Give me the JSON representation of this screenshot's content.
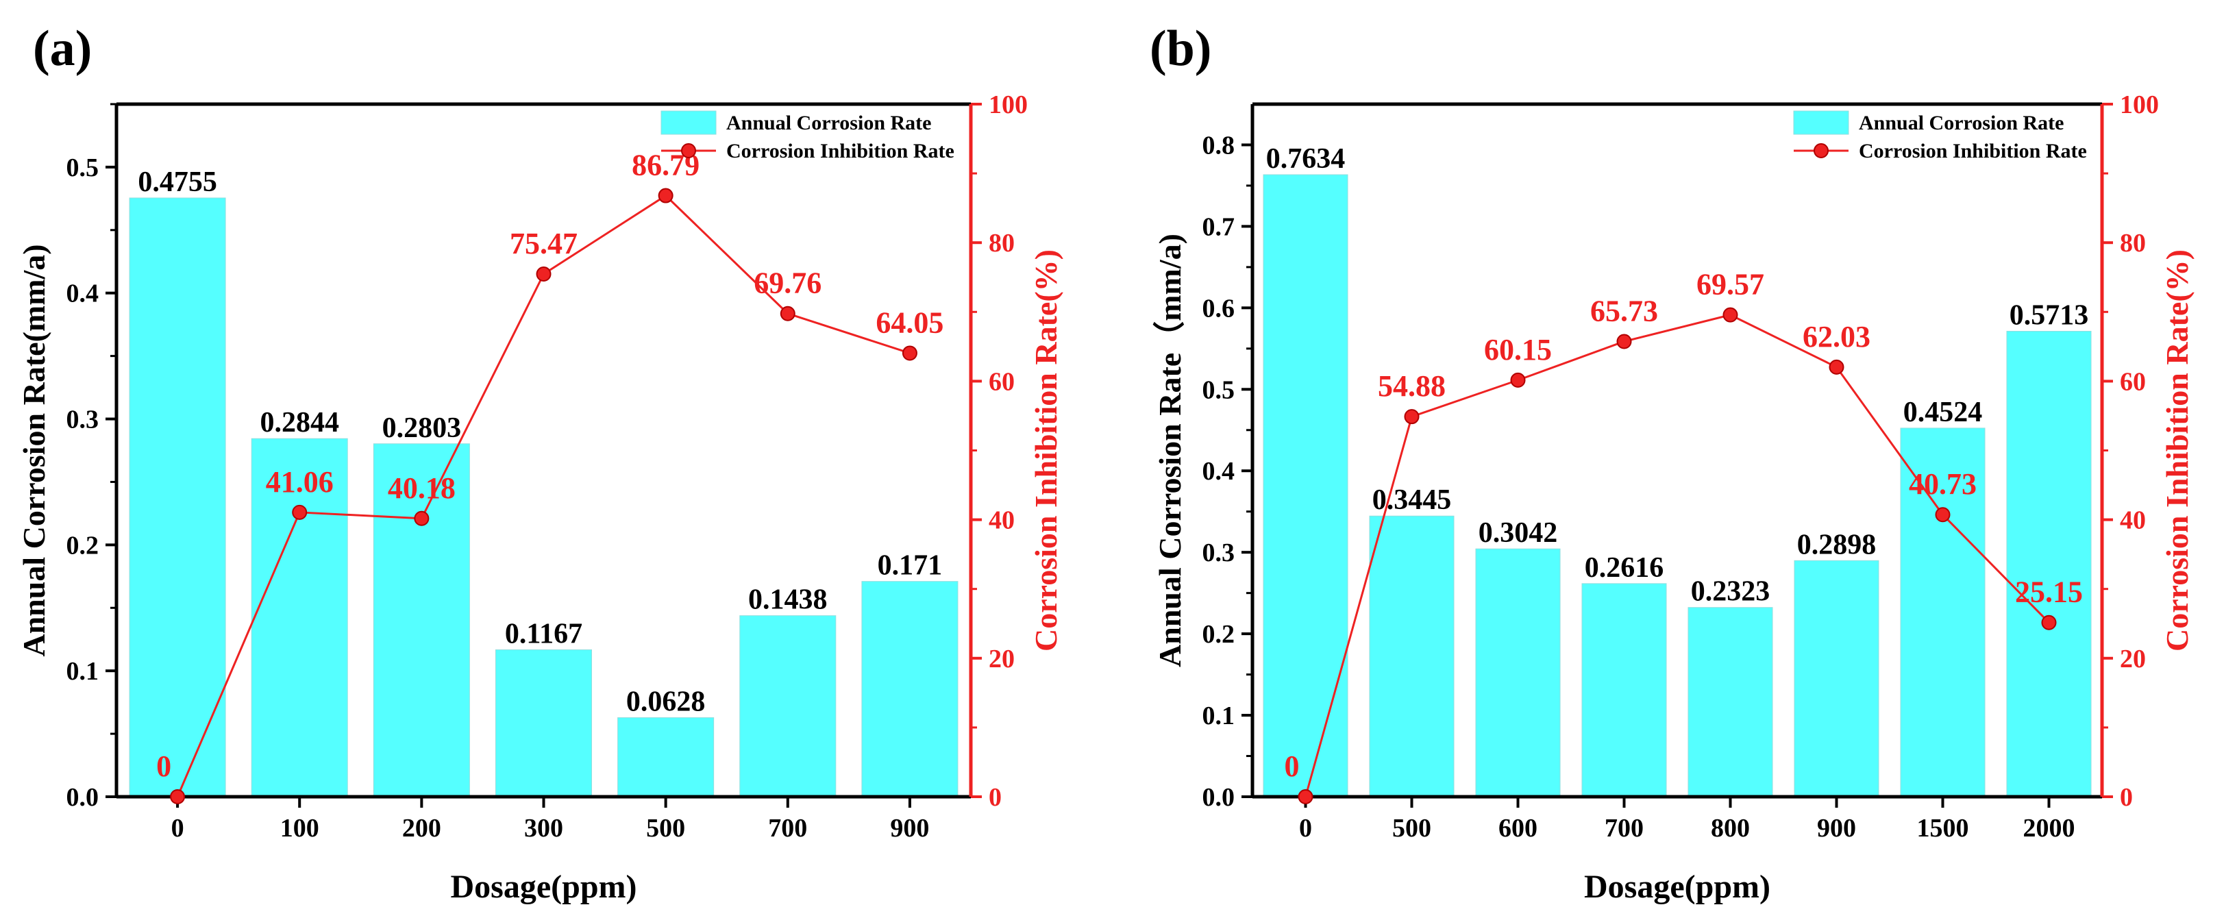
{
  "figure": {
    "panels": [
      "(a)",
      "(b)"
    ]
  },
  "chart_data": [
    {
      "panel": "(a)",
      "type": "bar",
      "xlabel": "Dosage(ppm)",
      "ylabel": "Annual Corrosion Rate(mm/a)",
      "y2label": "Corrosion Inhibition Rate(%)",
      "categories": [
        "0",
        "100",
        "200",
        "300",
        "500",
        "700",
        "900"
      ],
      "ylim": [
        0,
        0.55
      ],
      "yticks": [
        "0.0",
        "0.1",
        "0.2",
        "0.3",
        "0.4",
        "0.5"
      ],
      "y2lim": [
        0,
        100
      ],
      "y2ticks": [
        "0",
        "20",
        "40",
        "60",
        "80",
        "100"
      ],
      "legend_position": "top-right",
      "series": [
        {
          "name": "Annual Corrosion Rate",
          "type": "bar",
          "axis": "left",
          "color": "#55FFFF",
          "values": [
            0.4755,
            0.2844,
            0.2803,
            0.1167,
            0.0628,
            0.1438,
            0.171
          ],
          "labels": [
            "0.4755",
            "0.2844",
            "0.2803",
            "0.1167",
            "0.0628",
            "0.1438",
            "0.171"
          ]
        },
        {
          "name": "Corrosion Inhibition Rate",
          "type": "line",
          "axis": "right",
          "color": "#EE2222",
          "values": [
            0,
            41.06,
            40.18,
            75.47,
            86.79,
            69.76,
            64.05
          ],
          "labels": [
            "0",
            "41.06",
            "40.18",
            "75.47",
            "86.79",
            "69.76",
            "64.05"
          ]
        }
      ]
    },
    {
      "panel": "(b)",
      "type": "bar",
      "xlabel": "Dosage(ppm)",
      "ylabel": "Annual Corrosion Rate（mm/a)",
      "y2label": "Corrosion Inhibition Rate(%)",
      "categories": [
        "0",
        "500",
        "600",
        "700",
        "800",
        "900",
        "1500",
        "2000"
      ],
      "ylim": [
        0,
        0.85
      ],
      "yticks": [
        "0.0",
        "0.1",
        "0.2",
        "0.3",
        "0.4",
        "0.5",
        "0.6",
        "0.7",
        "0.8"
      ],
      "y2lim": [
        0,
        100
      ],
      "y2ticks": [
        "0",
        "20",
        "40",
        "60",
        "80",
        "100"
      ],
      "legend_position": "top-right",
      "series": [
        {
          "name": "Annual Corrosion Rate",
          "type": "bar",
          "axis": "left",
          "color": "#55FFFF",
          "values": [
            0.7634,
            0.3445,
            0.3042,
            0.2616,
            0.2323,
            0.2898,
            0.4524,
            0.5713
          ],
          "labels": [
            "0.7634",
            "0.3445",
            "0.3042",
            "0.2616",
            "0.2323",
            "0.2898",
            "0.4524",
            "0.5713"
          ]
        },
        {
          "name": "Corrosion Inhibition Rate",
          "type": "line",
          "axis": "right",
          "color": "#EE2222",
          "values": [
            0,
            54.88,
            60.15,
            65.73,
            69.57,
            62.03,
            40.73,
            25.15
          ],
          "labels": [
            "0",
            "54.88",
            "60.15",
            "65.73",
            "69.57",
            "62.03",
            "40.73",
            "25.15"
          ]
        }
      ]
    }
  ]
}
